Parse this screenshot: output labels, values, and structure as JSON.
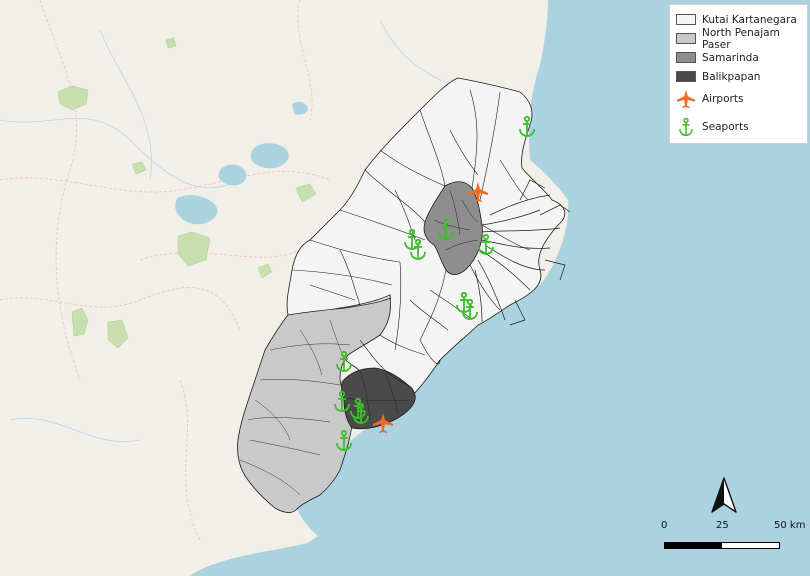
{
  "legend": {
    "items": [
      {
        "label": "Kutai Kartanegara",
        "color": "#f4f4f4"
      },
      {
        "label": "North Penajam Paser",
        "color": "#c9c9c9"
      },
      {
        "label": "Samarinda",
        "color": "#8e8e8e"
      },
      {
        "label": "Balikpapan",
        "color": "#4a4a4a"
      }
    ],
    "airports_label": "Airports",
    "seaports_label": "Seaports"
  },
  "scale": {
    "tick_0": "0",
    "tick_1": "25",
    "tick_2": "50 km"
  },
  "colors": {
    "sea": "#aad3df",
    "land": "#f2efe9",
    "airport": "#f26a21",
    "seaport": "#3dbf2a",
    "park": "#c8e0b0"
  },
  "icons": {
    "airport": "airplane-icon",
    "seaport": "anchor-icon",
    "north": "north-arrow-icon"
  }
}
